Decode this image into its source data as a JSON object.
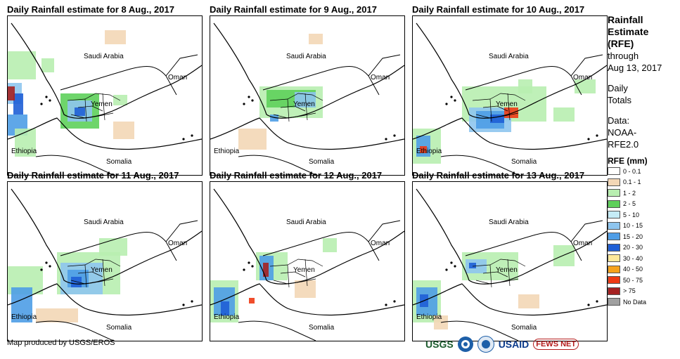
{
  "panels": [
    {
      "title": "Daily Rainfall estimate for 8 Aug., 2017"
    },
    {
      "title": "Daily Rainfall estimate for 9 Aug., 2017"
    },
    {
      "title": "Daily Rainfall estimate for 10 Aug., 2017"
    },
    {
      "title": "Daily Rainfall estimate for 11 Aug., 2017"
    },
    {
      "title": "Daily Rainfall estimate for 12 Aug., 2017"
    },
    {
      "title": "Daily Rainfall estimate for 13 Aug., 2017"
    }
  ],
  "map_labels": {
    "saudi": "Saudi Arabia",
    "oman": "Oman",
    "yemen": "Yemen",
    "ethiopia": "Ethiopia",
    "somalia": "Somalia"
  },
  "legend": {
    "title_lines": [
      "Rainfall",
      "Estimate",
      "(RFE)"
    ],
    "through": "through",
    "date": "Aug 13, 2017",
    "daily": "Daily",
    "totals": "Totals",
    "data_label": "Data:",
    "data_source_1": "NOAA-",
    "data_source_2": "RFE2.0",
    "rfe_heading": "RFE (mm)",
    "classes": [
      {
        "label": "0 - 0.1",
        "color": "#ffffff"
      },
      {
        "label": "0.1 - 1",
        "color": "#f3d7b6"
      },
      {
        "label": "1 - 2",
        "color": "#b8eeb0"
      },
      {
        "label": "2 - 5",
        "color": "#5ed05b"
      },
      {
        "label": "5 - 10",
        "color": "#c5ecf7"
      },
      {
        "label": "10 - 15",
        "color": "#8ec5ee"
      },
      {
        "label": "15 - 20",
        "color": "#4e9de6"
      },
      {
        "label": "20 - 30",
        "color": "#1f5fd6"
      },
      {
        "label": "30 - 40",
        "color": "#fde89a"
      },
      {
        "label": "40 - 50",
        "color": "#f6a21c"
      },
      {
        "label": "50 - 75",
        "color": "#ee3a14"
      },
      {
        "label": "> 75",
        "color": "#a52121"
      },
      {
        "label": "No Data",
        "color": "#a0a0a0"
      }
    ]
  },
  "footer": "Map produced by USGS/EROS",
  "logos": {
    "usgs": "USGS",
    "usaid": "USAID",
    "fews": "FEWS NET"
  }
}
